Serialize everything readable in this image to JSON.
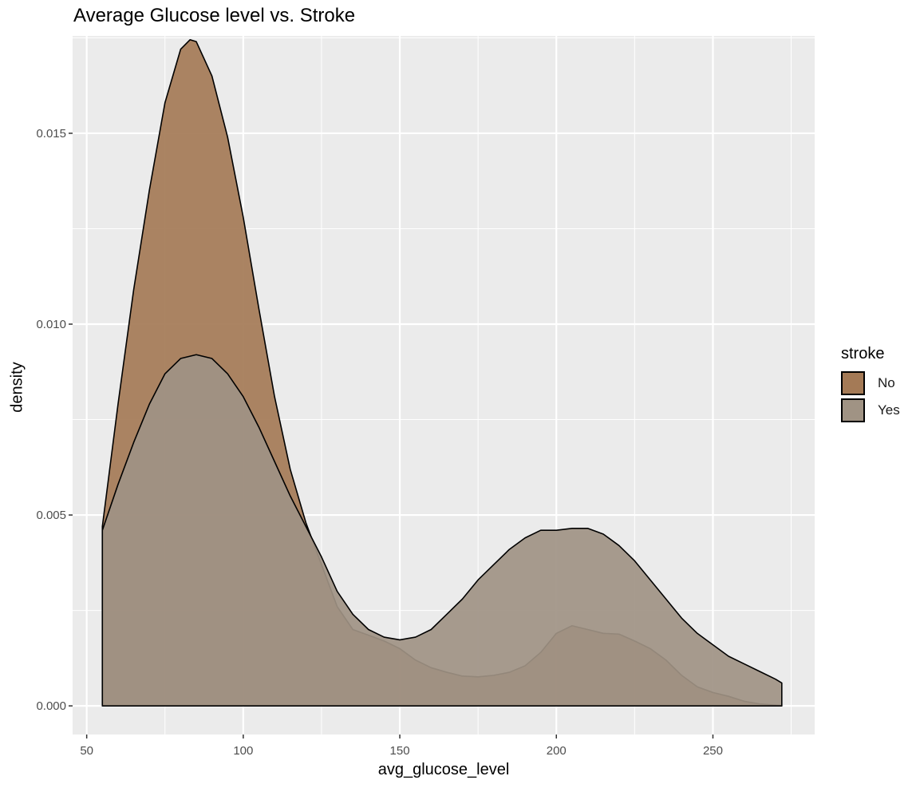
{
  "chart_data": {
    "type": "area",
    "title": "Average Glucose level vs. Stroke",
    "xlabel": "avg_glucose_level",
    "ylabel": "density",
    "xlim": [
      45.5,
      282.5
    ],
    "ylim": [
      -0.00075,
      0.01755
    ],
    "x_ticks": [
      50,
      100,
      150,
      200,
      250
    ],
    "x_tick_labels": [
      "50",
      "100",
      "150",
      "200",
      "250"
    ],
    "y_ticks": [
      0.0,
      0.005,
      0.01,
      0.015
    ],
    "y_tick_labels": [
      "0.000",
      "0.005",
      "0.010",
      "0.015"
    ],
    "grid": true,
    "legend": {
      "title": "stroke",
      "position": "right"
    },
    "series": [
      {
        "name": "No",
        "color": "#a47a56",
        "x": [
          55,
          60,
          65,
          70,
          75,
          80,
          83,
          85,
          90,
          95,
          100,
          105,
          110,
          115,
          120,
          125,
          130,
          135,
          140,
          145,
          150,
          155,
          160,
          165,
          170,
          175,
          180,
          185,
          190,
          195,
          200,
          205,
          210,
          215,
          220,
          225,
          230,
          235,
          240,
          245,
          250,
          255,
          260,
          265,
          270,
          272
        ],
        "values": [
          0.0047,
          0.0079,
          0.0109,
          0.0135,
          0.0158,
          0.0172,
          0.01745,
          0.0174,
          0.0165,
          0.0149,
          0.0128,
          0.0104,
          0.0081,
          0.0062,
          0.0048,
          0.0037,
          0.0026,
          0.002,
          0.00185,
          0.0017,
          0.0015,
          0.0012,
          0.001,
          0.00088,
          0.00078,
          0.00076,
          0.0008,
          0.00088,
          0.00105,
          0.0014,
          0.0019,
          0.0021,
          0.002,
          0.0019,
          0.00188,
          0.0017,
          0.0015,
          0.0012,
          0.0008,
          0.0005,
          0.00035,
          0.00025,
          0.00012,
          5e-05,
          2e-05,
          1e-05
        ]
      },
      {
        "name": "Yes",
        "color": "#a09384",
        "x": [
          55,
          60,
          65,
          70,
          75,
          80,
          85,
          90,
          95,
          100,
          105,
          110,
          115,
          120,
          125,
          130,
          135,
          140,
          145,
          150,
          155,
          160,
          165,
          170,
          175,
          180,
          185,
          190,
          195,
          200,
          205,
          210,
          215,
          220,
          225,
          230,
          235,
          240,
          245,
          250,
          255,
          260,
          265,
          270,
          272
        ],
        "values": [
          0.0046,
          0.0058,
          0.0069,
          0.0079,
          0.0087,
          0.0091,
          0.0092,
          0.0091,
          0.0087,
          0.0081,
          0.0073,
          0.0064,
          0.0055,
          0.0047,
          0.0039,
          0.003,
          0.0024,
          0.002,
          0.0018,
          0.00173,
          0.0018,
          0.002,
          0.0024,
          0.0028,
          0.0033,
          0.0037,
          0.0041,
          0.0044,
          0.0046,
          0.0046,
          0.00465,
          0.00465,
          0.0045,
          0.0042,
          0.0038,
          0.0033,
          0.0028,
          0.0023,
          0.0019,
          0.0016,
          0.0013,
          0.0011,
          0.0009,
          0.0007,
          0.0006
        ]
      }
    ]
  }
}
